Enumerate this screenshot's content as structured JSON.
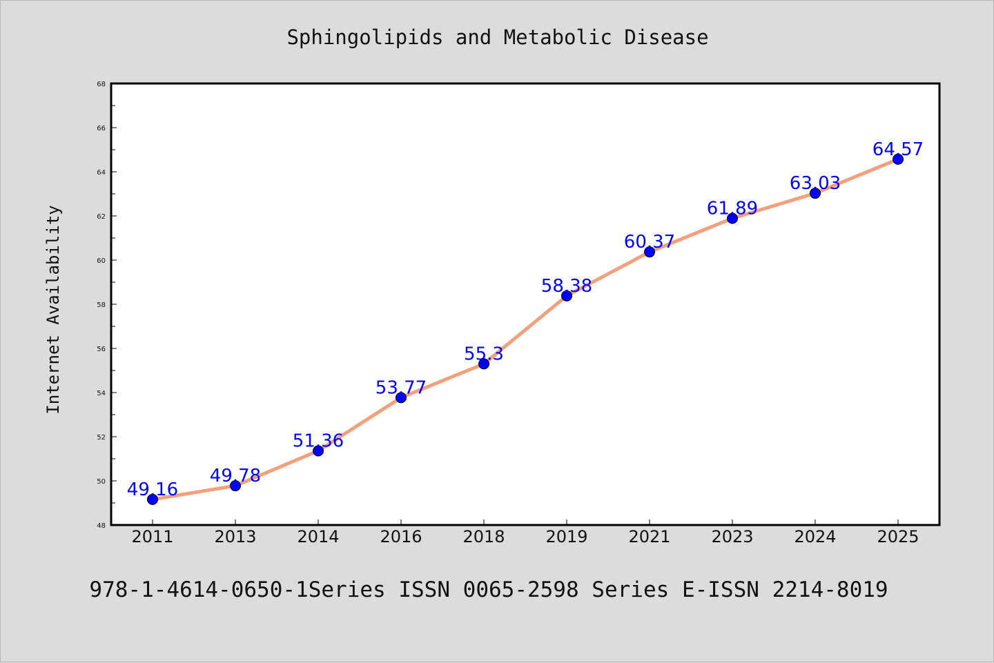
{
  "chart_data": {
    "type": "line",
    "title": "Sphingolipids and Metabolic Disease",
    "xlabel": "",
    "ylabel": "Internet Availability",
    "categories": [
      "2011",
      "2013",
      "2014",
      "2016",
      "2018",
      "2019",
      "2021",
      "2023",
      "2024",
      "2025"
    ],
    "series": [
      {
        "values": [
          49.16,
          49.78,
          51.36,
          53.77,
          55.3,
          58.38,
          60.37,
          61.89,
          63.03,
          64.57
        ],
        "data_labels": [
          "49.16",
          "49.78",
          "51.36",
          "53.77",
          "55.3",
          "58.38",
          "60.37",
          "61.89",
          "63.03",
          "64.57"
        ],
        "line_color": "#f4a07c",
        "marker_color": "#0000ff"
      }
    ],
    "ylim": [
      48,
      68
    ],
    "yticks": [
      48,
      50,
      52,
      54,
      56,
      58,
      60,
      62,
      64,
      66,
      68
    ],
    "grid": false,
    "legend": "none"
  },
  "footer": {
    "text": "978-1-4614-0650-1Series ISSN 0065-2598 Series E-ISSN 2214-8019"
  },
  "colors": {
    "page_background": "#dcdcdc",
    "plot_background": "#ffffff",
    "line": "#f4a07c",
    "marker": "#0000ff",
    "data_label": "#0000ff"
  }
}
